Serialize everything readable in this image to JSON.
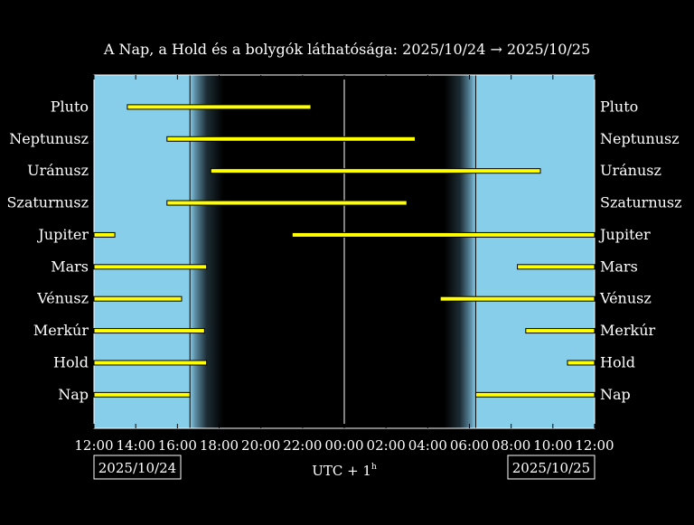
{
  "chart_data": {
    "type": "timeline",
    "title": "A Nap, a Hold és a bolygók láthatósága: 2025/10/24 → 2025/10/25",
    "xlabel_base": "UTC + 1",
    "xlabel_sup": "h",
    "x_ticks": [
      "12:00",
      "14:00",
      "16:00",
      "18:00",
      "20:00",
      "22:00",
      "00:00",
      "02:00",
      "04:00",
      "06:00",
      "08:00",
      "10:00",
      "12:00"
    ],
    "x_range_hours": [
      12,
      36
    ],
    "date_left": "2025/10/24",
    "date_right": "2025/10/25",
    "sunset": 16.6,
    "sunrise": 30.3,
    "dusk_end": 18.2,
    "dawn_start": 28.8,
    "midnight": 24,
    "grid": false,
    "colors": {
      "day": "#87ceeb",
      "night": "#000000",
      "bar": "#ffff00",
      "bar_outline": "#000000",
      "line": "#ffffff"
    },
    "bodies": [
      {
        "name": "Pluto",
        "segments": [
          [
            13.6,
            22.4
          ]
        ]
      },
      {
        "name": "Neptunusz",
        "segments": [
          [
            15.5,
            27.4
          ]
        ]
      },
      {
        "name": "Uránusz",
        "segments": [
          [
            17.6,
            33.4
          ]
        ]
      },
      {
        "name": "Szaturnusz",
        "segments": [
          [
            15.5,
            27.0
          ]
        ]
      },
      {
        "name": "Jupiter",
        "segments": [
          [
            12.0,
            13.0
          ],
          [
            21.5,
            36.0
          ]
        ]
      },
      {
        "name": "Mars",
        "segments": [
          [
            12.0,
            17.4
          ],
          [
            32.3,
            36.0
          ]
        ]
      },
      {
        "name": "Vénusz",
        "segments": [
          [
            12.0,
            16.2
          ],
          [
            28.6,
            36.0
          ]
        ]
      },
      {
        "name": "Merkúr",
        "segments": [
          [
            12.0,
            17.3
          ],
          [
            32.7,
            36.0
          ]
        ]
      },
      {
        "name": "Hold",
        "segments": [
          [
            12.0,
            17.4
          ],
          [
            34.7,
            36.0
          ]
        ]
      },
      {
        "name": "Nap",
        "segments": [
          [
            12.0,
            16.6
          ],
          [
            30.3,
            36.0
          ]
        ]
      }
    ]
  }
}
